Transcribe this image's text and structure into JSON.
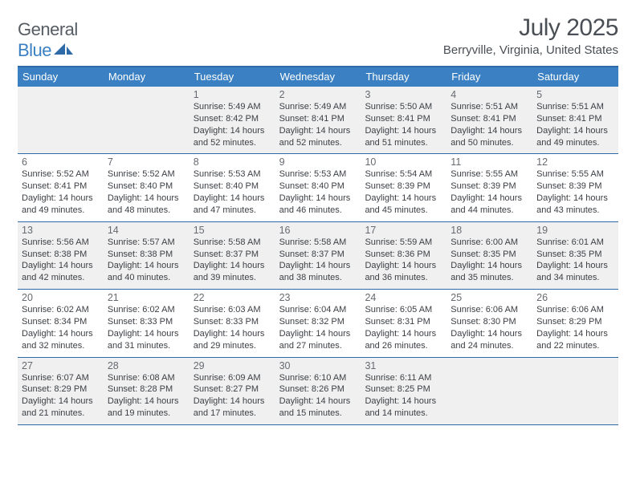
{
  "brand": {
    "text1": "General",
    "text2": "Blue"
  },
  "header": {
    "month_title": "July 2025",
    "location": "Berryville, Virginia, United States"
  },
  "colors": {
    "accent": "#3a80c3",
    "rule": "#2f6aa8",
    "shade": "#f0f0f0",
    "text": "#3b3f44",
    "muted": "#666b71"
  },
  "weekdays": [
    "Sunday",
    "Monday",
    "Tuesday",
    "Wednesday",
    "Thursday",
    "Friday",
    "Saturday"
  ],
  "calendar": {
    "first_weekday_index": 2,
    "days": [
      {
        "n": "1",
        "sunrise": "5:49 AM",
        "sunset": "8:42 PM",
        "daylight": "14 hours and 52 minutes."
      },
      {
        "n": "2",
        "sunrise": "5:49 AM",
        "sunset": "8:41 PM",
        "daylight": "14 hours and 52 minutes."
      },
      {
        "n": "3",
        "sunrise": "5:50 AM",
        "sunset": "8:41 PM",
        "daylight": "14 hours and 51 minutes."
      },
      {
        "n": "4",
        "sunrise": "5:51 AM",
        "sunset": "8:41 PM",
        "daylight": "14 hours and 50 minutes."
      },
      {
        "n": "5",
        "sunrise": "5:51 AM",
        "sunset": "8:41 PM",
        "daylight": "14 hours and 49 minutes."
      },
      {
        "n": "6",
        "sunrise": "5:52 AM",
        "sunset": "8:41 PM",
        "daylight": "14 hours and 49 minutes."
      },
      {
        "n": "7",
        "sunrise": "5:52 AM",
        "sunset": "8:40 PM",
        "daylight": "14 hours and 48 minutes."
      },
      {
        "n": "8",
        "sunrise": "5:53 AM",
        "sunset": "8:40 PM",
        "daylight": "14 hours and 47 minutes."
      },
      {
        "n": "9",
        "sunrise": "5:53 AM",
        "sunset": "8:40 PM",
        "daylight": "14 hours and 46 minutes."
      },
      {
        "n": "10",
        "sunrise": "5:54 AM",
        "sunset": "8:39 PM",
        "daylight": "14 hours and 45 minutes."
      },
      {
        "n": "11",
        "sunrise": "5:55 AM",
        "sunset": "8:39 PM",
        "daylight": "14 hours and 44 minutes."
      },
      {
        "n": "12",
        "sunrise": "5:55 AM",
        "sunset": "8:39 PM",
        "daylight": "14 hours and 43 minutes."
      },
      {
        "n": "13",
        "sunrise": "5:56 AM",
        "sunset": "8:38 PM",
        "daylight": "14 hours and 42 minutes."
      },
      {
        "n": "14",
        "sunrise": "5:57 AM",
        "sunset": "8:38 PM",
        "daylight": "14 hours and 40 minutes."
      },
      {
        "n": "15",
        "sunrise": "5:58 AM",
        "sunset": "8:37 PM",
        "daylight": "14 hours and 39 minutes."
      },
      {
        "n": "16",
        "sunrise": "5:58 AM",
        "sunset": "8:37 PM",
        "daylight": "14 hours and 38 minutes."
      },
      {
        "n": "17",
        "sunrise": "5:59 AM",
        "sunset": "8:36 PM",
        "daylight": "14 hours and 36 minutes."
      },
      {
        "n": "18",
        "sunrise": "6:00 AM",
        "sunset": "8:35 PM",
        "daylight": "14 hours and 35 minutes."
      },
      {
        "n": "19",
        "sunrise": "6:01 AM",
        "sunset": "8:35 PM",
        "daylight": "14 hours and 34 minutes."
      },
      {
        "n": "20",
        "sunrise": "6:02 AM",
        "sunset": "8:34 PM",
        "daylight": "14 hours and 32 minutes."
      },
      {
        "n": "21",
        "sunrise": "6:02 AM",
        "sunset": "8:33 PM",
        "daylight": "14 hours and 31 minutes."
      },
      {
        "n": "22",
        "sunrise": "6:03 AM",
        "sunset": "8:33 PM",
        "daylight": "14 hours and 29 minutes."
      },
      {
        "n": "23",
        "sunrise": "6:04 AM",
        "sunset": "8:32 PM",
        "daylight": "14 hours and 27 minutes."
      },
      {
        "n": "24",
        "sunrise": "6:05 AM",
        "sunset": "8:31 PM",
        "daylight": "14 hours and 26 minutes."
      },
      {
        "n": "25",
        "sunrise": "6:06 AM",
        "sunset": "8:30 PM",
        "daylight": "14 hours and 24 minutes."
      },
      {
        "n": "26",
        "sunrise": "6:06 AM",
        "sunset": "8:29 PM",
        "daylight": "14 hours and 22 minutes."
      },
      {
        "n": "27",
        "sunrise": "6:07 AM",
        "sunset": "8:29 PM",
        "daylight": "14 hours and 21 minutes."
      },
      {
        "n": "28",
        "sunrise": "6:08 AM",
        "sunset": "8:28 PM",
        "daylight": "14 hours and 19 minutes."
      },
      {
        "n": "29",
        "sunrise": "6:09 AM",
        "sunset": "8:27 PM",
        "daylight": "14 hours and 17 minutes."
      },
      {
        "n": "30",
        "sunrise": "6:10 AM",
        "sunset": "8:26 PM",
        "daylight": "14 hours and 15 minutes."
      },
      {
        "n": "31",
        "sunrise": "6:11 AM",
        "sunset": "8:25 PM",
        "daylight": "14 hours and 14 minutes."
      }
    ]
  },
  "labels": {
    "sunrise_prefix": "Sunrise: ",
    "sunset_prefix": "Sunset: ",
    "daylight_prefix": "Daylight: "
  }
}
